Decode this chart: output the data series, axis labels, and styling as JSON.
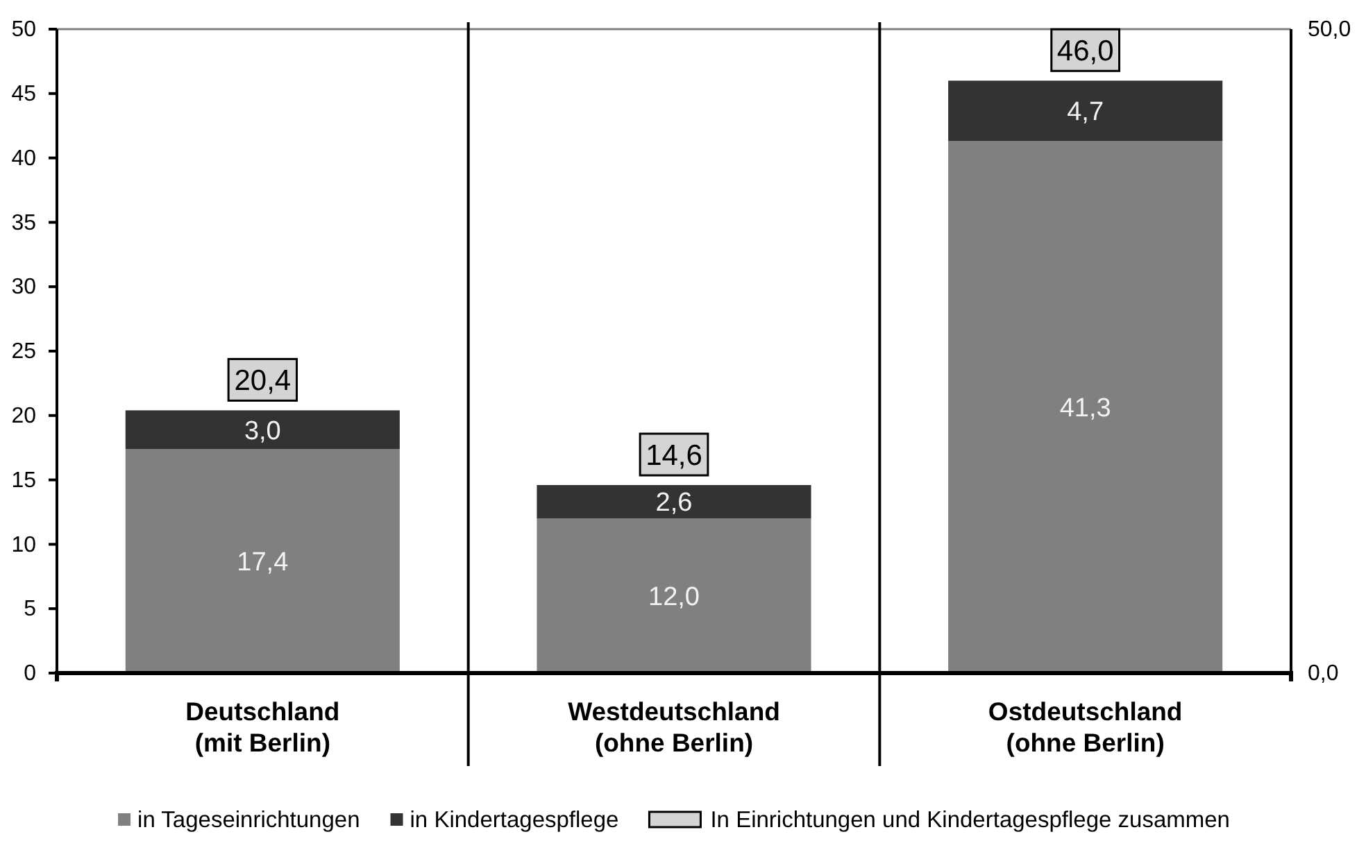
{
  "chart_data": {
    "type": "bar",
    "stacked": true,
    "categories": [
      "Deutschland\n(mit Berlin)",
      "Westdeutschland\n(ohne Berlin)",
      "Ostdeutschland\n(ohne Berlin)"
    ],
    "series": [
      {
        "name": "in Tageseinrichtungen",
        "color": "#808080",
        "values": [
          17.4,
          12.0,
          41.3
        ],
        "value_labels": [
          "17,4",
          "12,0",
          "41,3"
        ]
      },
      {
        "name": "in Kindertagespflege",
        "color": "#333333",
        "values": [
          3.0,
          2.6,
          4.7
        ],
        "value_labels": [
          "3,0",
          "2,6",
          "4,7"
        ]
      }
    ],
    "totals": [
      "20,4",
      "14,6",
      "46,0"
    ],
    "ylim": [
      0,
      50
    ],
    "yticks": [
      0,
      5,
      10,
      15,
      20,
      25,
      30,
      35,
      40,
      45,
      50
    ],
    "y2lim": [
      0,
      50
    ],
    "y2ticks": [
      {
        "value": 0,
        "label": "0,0"
      },
      {
        "value": 50,
        "label": "50,0"
      }
    ],
    "legend": "bottom",
    "annotations": [
      "In Einrichtungen und Kindertagespflege zusammen"
    ]
  }
}
